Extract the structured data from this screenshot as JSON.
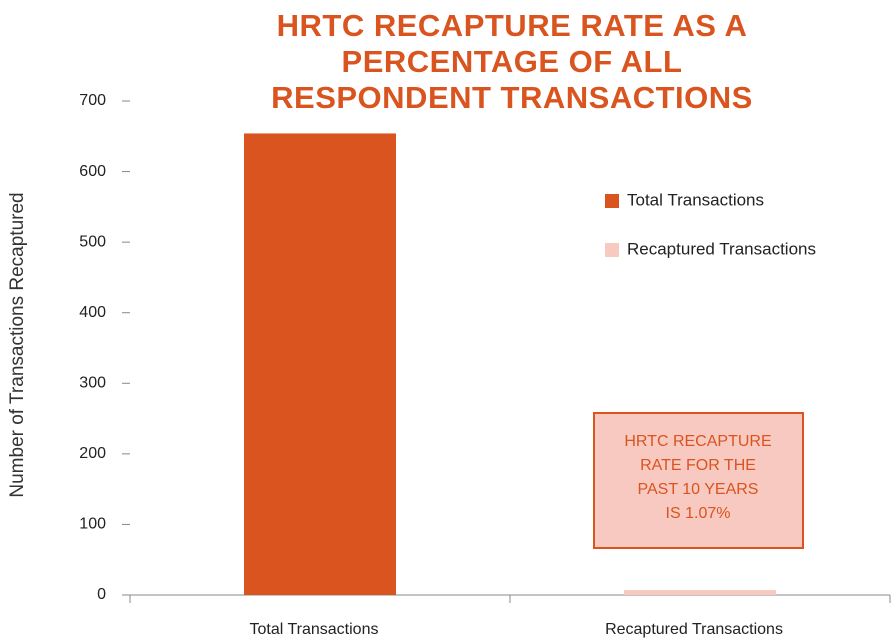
{
  "chart_data": {
    "type": "bar",
    "title": "HRTC RECAPTURE RATE AS A PERCENTAGE OF ALL RESPONDENT TRANSACTIONS",
    "y_label": "Number of Transactions Recaptured",
    "categories": [
      "Total Transactions",
      "Recaptured Transactions"
    ],
    "series": [
      {
        "name": "Total Transactions",
        "color": "#d9541e",
        "values": [
          654,
          null
        ]
      },
      {
        "name": "Recaptured Transactions",
        "color": "#f8c9c0",
        "values": [
          null,
          7
        ]
      }
    ],
    "ylim": [
      0,
      700
    ],
    "yticks": [
      0,
      100,
      200,
      300,
      400,
      500,
      600,
      700
    ],
    "annotation": [
      "HRTC RECAPTURE",
      "RATE FOR THE",
      "PAST 10 YEARS",
      "IS 1.07%"
    ]
  }
}
